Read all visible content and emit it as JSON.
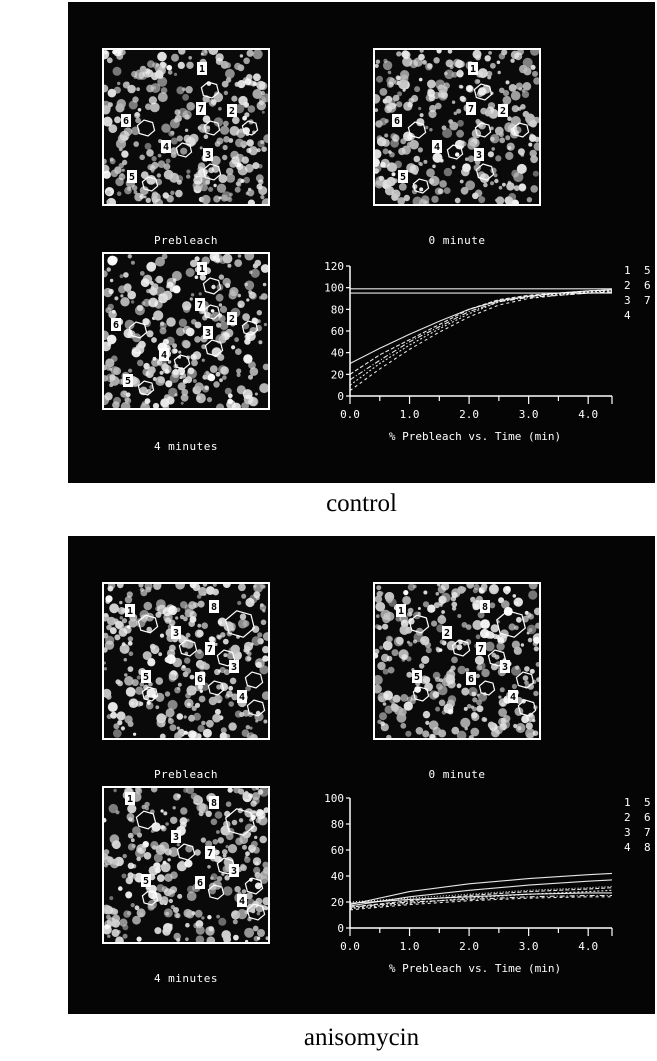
{
  "panels": [
    {
      "id": "control",
      "condition_label": "control",
      "captions": {
        "prebleach": "Prebleach",
        "zero": "0 minute",
        "four": "4 minutes"
      },
      "roi_labels": [
        "1",
        "2",
        "3",
        "4",
        "5",
        "6",
        "7"
      ],
      "chart_data": {
        "type": "line",
        "xlabel": "% Prebleach vs. Time (min)",
        "ylabel": "",
        "xlim": [
          0.0,
          4.4
        ],
        "ylim": [
          0,
          120
        ],
        "x_ticks": [
          "0.0",
          "1.0",
          "2.0",
          "3.0",
          "4.0"
        ],
        "y_ticks": [
          "0",
          "20",
          "40",
          "60",
          "80",
          "100",
          "120"
        ],
        "legend": [
          [
            "1",
            "5"
          ],
          [
            "2",
            "6"
          ],
          [
            "3",
            "7"
          ],
          [
            "4",
            ""
          ]
        ],
        "x": [
          0.0,
          0.5,
          1.0,
          1.5,
          2.0,
          2.5,
          3.0,
          3.5,
          4.0,
          4.4
        ],
        "series": [
          {
            "values": [
              99,
              99,
              99,
              99,
              99,
              99,
              99,
              99,
              99,
              99
            ]
          },
          {
            "values": [
              95,
              95,
              95,
              95,
              95,
              95,
              95,
              95,
              95,
              95
            ]
          },
          {
            "values": [
              20,
              38,
              52,
              66,
              80,
              89,
              93,
              95,
              97,
              98
            ]
          },
          {
            "values": [
              10,
              30,
              47,
              62,
              76,
              87,
              92,
              94,
              96,
              97
            ]
          },
          {
            "values": [
              30,
              44,
              57,
              69,
              80,
              88,
              92,
              95,
              97,
              98
            ]
          },
          {
            "values": [
              15,
              33,
              50,
              64,
              78,
              87,
              91,
              93,
              95,
              96
            ]
          },
          {
            "values": [
              5,
              25,
              43,
              59,
              73,
              84,
              90,
              93,
              95,
              96
            ]
          }
        ]
      }
    },
    {
      "id": "anisomycin",
      "condition_label": "anisomycin",
      "captions": {
        "prebleach": "Prebleach",
        "zero": "0 minute",
        "four": "4 minutes"
      },
      "roi_labels": [
        "1",
        "2",
        "3",
        "4",
        "5",
        "6",
        "7",
        "8"
      ],
      "chart_data": {
        "type": "line",
        "xlabel": "% Prebleach vs. Time (min)",
        "ylabel": "",
        "xlim": [
          0.0,
          4.4
        ],
        "ylim": [
          0,
          100
        ],
        "x_ticks": [
          "0.0",
          "1.0",
          "2.0",
          "3.0",
          "4.0"
        ],
        "y_ticks": [
          "0",
          "20",
          "40",
          "60",
          "80",
          "100"
        ],
        "legend": [
          [
            "1",
            "5"
          ],
          [
            "2",
            "6"
          ],
          [
            "3",
            "7"
          ],
          [
            "4",
            "8"
          ]
        ],
        "x": [
          0.0,
          1.0,
          2.0,
          3.0,
          4.0,
          4.4
        ],
        "series": [
          {
            "values": [
              18,
              28,
              34,
              38,
              41,
              42
            ]
          },
          {
            "values": [
              17,
              24,
              29,
              33,
              36,
              37
            ]
          },
          {
            "values": [
              16,
              21,
              25,
              28,
              30,
              31
            ]
          },
          {
            "values": [
              15,
              19,
              23,
              26,
              28,
              29
            ]
          },
          {
            "values": [
              19,
              22,
              24,
              26,
              27,
              27
            ]
          },
          {
            "values": [
              16,
              20,
              22,
              24,
              25,
              25
            ]
          },
          {
            "values": [
              14,
              18,
              21,
              23,
              24,
              24
            ]
          },
          {
            "values": [
              20,
              23,
              26,
              29,
              31,
              32
            ]
          }
        ]
      }
    }
  ]
}
